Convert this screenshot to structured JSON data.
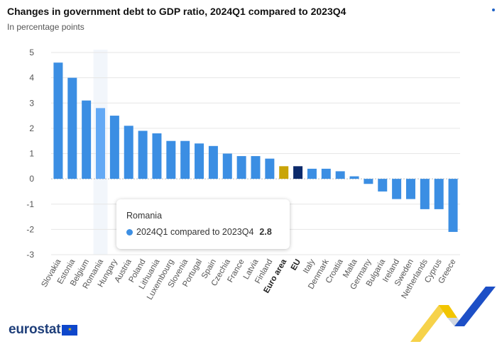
{
  "header": {
    "title": "Changes in government debt to GDP ratio, 2024Q1 compared to 2023Q4",
    "subtitle": "In percentage points"
  },
  "colors": {
    "default": "#3b8ee3",
    "highlight": "#63a9f5",
    "euro_area": "#c9a408",
    "eu": "#0c2a6b",
    "grid": "#e6e6e6",
    "axis_text": "#555555"
  },
  "chart_data": {
    "type": "bar",
    "title": "Changes in government debt to GDP ratio, 2024Q1 compared to 2023Q4",
    "subtitle": "In percentage points",
    "xlabel": "",
    "ylabel": "",
    "ylim": [
      -3,
      5
    ],
    "yticks": [
      5,
      4,
      3,
      2,
      1,
      0,
      -1,
      -2,
      -3
    ],
    "grid": true,
    "categories": [
      "Slovakia",
      "Estonia",
      "Belgium",
      "Romania",
      "Hungary",
      "Austria",
      "Poland",
      "Lithuania",
      "Luxembourg",
      "Slovenia",
      "Portugal",
      "Spain",
      "Czechia",
      "France",
      "Latvia",
      "Finland",
      "Euro area",
      "EU",
      "Italy",
      "Denmark",
      "Croatia",
      "Malta",
      "Germany",
      "Bulgaria",
      "Ireland",
      "Sweden",
      "Netherlands",
      "Cyprus",
      "Greece"
    ],
    "bold_categories": [
      "Euro area",
      "EU"
    ],
    "highlighted": "Romania",
    "series": [
      {
        "name": "2024Q1 compared to 2023Q4",
        "values": [
          4.6,
          4.0,
          3.1,
          2.8,
          2.5,
          2.1,
          1.9,
          1.8,
          1.5,
          1.5,
          1.4,
          1.3,
          1.0,
          0.9,
          0.9,
          0.8,
          0.5,
          0.5,
          0.4,
          0.4,
          0.3,
          0.1,
          -0.2,
          -0.5,
          -0.8,
          -0.8,
          -1.2,
          -1.2,
          -2.1
        ]
      }
    ]
  },
  "tooltip": {
    "country": "Romania",
    "series_label": "2024Q1 compared to 2023Q4",
    "value": "2.8"
  },
  "logo": {
    "text": "eurostat"
  }
}
